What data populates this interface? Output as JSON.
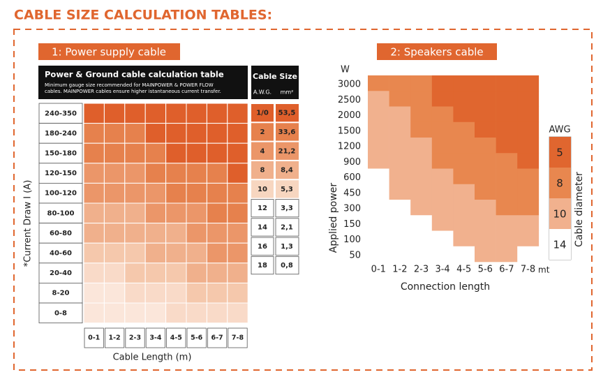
{
  "title": "CABLE SIZE CALCULATION TABLES:",
  "power_table": {
    "label": "1: Power supply cable",
    "header_title": "Power & Ground cable calculation table",
    "header_note": [
      "Minimum gauge size recommended for MAINPOWER & POWER FLOW",
      "cables. MAINPOWER cables ensure higher istantaneous current transfer."
    ],
    "size_header": "Cable Size",
    "awg_header": "A.W.G.",
    "mm_header": "mm²",
    "axis_label": "*Current Draw I (A)",
    "length_label": "Cable Length (m)",
    "rows": [
      "240-350",
      "180-240",
      "150-180",
      "120-150",
      "100-120",
      "80-100",
      "60-80",
      "40-60",
      "20-40",
      "8-20",
      "0-8"
    ],
    "columns": [
      "0-1",
      "1-2",
      "2-3",
      "3-4",
      "4-5",
      "5-6",
      "6-7",
      "7-8"
    ],
    "cell_colors": [
      [
        "#df5f2b",
        "#df5f2b",
        "#df5f2b",
        "#df5f2b",
        "#df5f2b",
        "#df5f2b",
        "#df5f2b",
        "#df5f2b"
      ],
      [
        "#e6814d",
        "#e6814d",
        "#e6814d",
        "#df5f2b",
        "#df5f2b",
        "#df5f2b",
        "#df5f2b",
        "#df5f2b"
      ],
      [
        "#e6814d",
        "#e6814d",
        "#e6814d",
        "#e6814d",
        "#df5f2b",
        "#df5f2b",
        "#df5f2b",
        "#df5f2b"
      ],
      [
        "#eb9669",
        "#eb9669",
        "#eb9669",
        "#e6814d",
        "#e6814d",
        "#e6814d",
        "#e6814d",
        "#df5f2b"
      ],
      [
        "#eb9669",
        "#eb9669",
        "#eb9669",
        "#eb9669",
        "#e6814d",
        "#e6814d",
        "#e6814d",
        "#e6814d"
      ],
      [
        "#f0b08c",
        "#f0b08c",
        "#f0b08c",
        "#eb9669",
        "#eb9669",
        "#eb9669",
        "#e6814d",
        "#e6814d"
      ],
      [
        "#f0b08c",
        "#f0b08c",
        "#f0b08c",
        "#f0b08c",
        "#f0b08c",
        "#eb9669",
        "#eb9669",
        "#eb9669"
      ],
      [
        "#f5c8ac",
        "#f5c8ac",
        "#f5c8ac",
        "#f0b08c",
        "#f0b08c",
        "#f0b08c",
        "#eb9669",
        "#eb9669"
      ],
      [
        "#f9dac8",
        "#f9dac8",
        "#f5c8ac",
        "#f5c8ac",
        "#f5c8ac",
        "#f0b08c",
        "#f0b08c",
        "#f0b08c"
      ],
      [
        "#fbe6da",
        "#fbe6da",
        "#f9dac8",
        "#f9dac8",
        "#f9dac8",
        "#f5c8ac",
        "#f5c8ac",
        "#f5c8ac"
      ],
      [
        "#fbe6da",
        "#fbe6da",
        "#fbe6da",
        "#fbe6da",
        "#f9dac8",
        "#f9dac8",
        "#f9dac8",
        "#f9dac8"
      ]
    ],
    "sizes": [
      {
        "awg": "1/0",
        "mm2": "53,5",
        "color": "#df5f2b"
      },
      {
        "awg": "2",
        "mm2": "33,6",
        "color": "#e6814d"
      },
      {
        "awg": "4",
        "mm2": "21,2",
        "color": "#eb9669"
      },
      {
        "awg": "8",
        "mm2": "8,4",
        "color": "#f0b08c"
      },
      {
        "awg": "10",
        "mm2": "5,3",
        "color": "#f7d6c0"
      },
      {
        "awg": "12",
        "mm2": "3,3",
        "color": "#ffffff"
      },
      {
        "awg": "14",
        "mm2": "2,1",
        "color": "#ffffff"
      },
      {
        "awg": "16",
        "mm2": "1,3",
        "color": "#ffffff"
      },
      {
        "awg": "18",
        "mm2": "0,8",
        "color": "#ffffff"
      }
    ]
  },
  "speaker_table": {
    "label": "2: Speakers cable",
    "unit": "W",
    "length_unit": "mt",
    "axis_label": "Applied power",
    "length_label": "Connection length",
    "rows": [
      3000,
      2500,
      2000,
      1500,
      1200,
      900,
      600,
      450,
      300,
      150,
      100,
      50
    ],
    "columns": [
      "0-1",
      "1-2",
      "2-3",
      "3-4",
      "4-5",
      "5-6",
      "6-7",
      "7-8"
    ],
    "cell_colors": [
      [
        "#e8874f",
        "#e8874f",
        "#e8874f",
        "#e0662f",
        "#e0662f",
        "#e0662f",
        "#e0662f",
        "#e0662f"
      ],
      [
        "#f1b18e",
        "#e8874f",
        "#e8874f",
        "#e0662f",
        "#e0662f",
        "#e0662f",
        "#e0662f",
        "#e0662f"
      ],
      [
        "#f1b18e",
        "#f1b18e",
        "#e8874f",
        "#e8874f",
        "#e0662f",
        "#e0662f",
        "#e0662f",
        "#e0662f"
      ],
      [
        "#f1b18e",
        "#f1b18e",
        "#e8874f",
        "#e8874f",
        "#e8874f",
        "#e0662f",
        "#e0662f",
        "#e0662f"
      ],
      [
        "#f1b18e",
        "#f1b18e",
        "#f1b18e",
        "#e8874f",
        "#e8874f",
        "#e8874f",
        "#e0662f",
        "#e0662f"
      ],
      [
        "#f1b18e",
        "#f1b18e",
        "#f1b18e",
        "#e8874f",
        "#e8874f",
        "#e8874f",
        "#e8874f",
        "#e0662f"
      ],
      [
        "#ffffff",
        "#f1b18e",
        "#f1b18e",
        "#f1b18e",
        "#e8874f",
        "#e8874f",
        "#e8874f",
        "#e8874f"
      ],
      [
        "#ffffff",
        "#f1b18e",
        "#f1b18e",
        "#f1b18e",
        "#f1b18e",
        "#e8874f",
        "#e8874f",
        "#e8874f"
      ],
      [
        "#ffffff",
        "#ffffff",
        "#f1b18e",
        "#f1b18e",
        "#f1b18e",
        "#f1b18e",
        "#e8874f",
        "#e8874f"
      ],
      [
        "#ffffff",
        "#ffffff",
        "#ffffff",
        "#f1b18e",
        "#f1b18e",
        "#f1b18e",
        "#f1b18e",
        "#f1b18e"
      ],
      [
        "#ffffff",
        "#ffffff",
        "#ffffff",
        "#ffffff",
        "#f1b18e",
        "#f1b18e",
        "#f1b18e",
        "#f1b18e"
      ],
      [
        "#ffffff",
        "#ffffff",
        "#ffffff",
        "#ffffff",
        "#ffffff",
        "#f1b18e",
        "#f1b18e",
        "#ffffff"
      ]
    ],
    "legend_title": "AWG",
    "legend": [
      {
        "label": 5,
        "color": "#e0662f"
      },
      {
        "label": 8,
        "color": "#e8874f"
      },
      {
        "label": 10,
        "color": "#f1b18e"
      },
      {
        "label": 14,
        "color": "#ffffff"
      }
    ],
    "legend_axis": "Cable diameter"
  }
}
